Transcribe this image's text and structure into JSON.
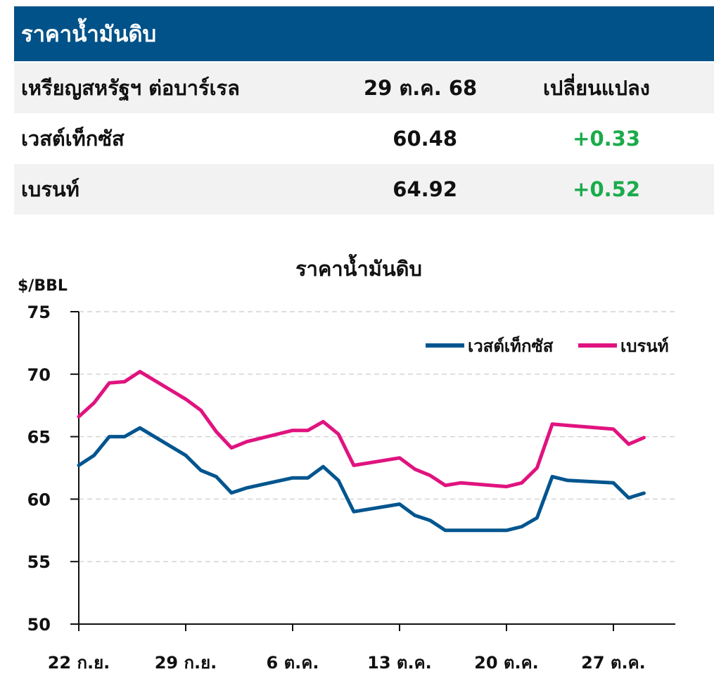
{
  "header": {
    "title": "ราคาน้ำมันดิบ"
  },
  "table": {
    "columns": [
      "เหรียญสหรัฐฯ ต่อบาร์เรล",
      "29 ต.ค. 68",
      "เปลี่ยนแปลง"
    ],
    "rows": [
      {
        "name": "เวสต์เท็กซัส",
        "price": "60.48",
        "change": "+0.33"
      },
      {
        "name": "เบรนท์",
        "price": "64.92",
        "change": "+0.52"
      }
    ]
  },
  "colors": {
    "header": "#005288",
    "wti": "#00558f",
    "brent": "#e0137f",
    "positive": "#1aab4b"
  },
  "chart_data": {
    "type": "line",
    "title": "ราคาน้ำมันดิบ",
    "ylabel": "$/BBL",
    "ylim": [
      50,
      75
    ],
    "yticks": [
      50,
      55,
      60,
      65,
      70,
      75
    ],
    "xticks": [
      {
        "date": "2025-09-22",
        "label": "22 ก.ย."
      },
      {
        "date": "2025-09-29",
        "label": "29 ก.ย."
      },
      {
        "date": "2025-10-06",
        "label": "6 ต.ค."
      },
      {
        "date": "2025-10-13",
        "label": "13 ต.ค."
      },
      {
        "date": "2025-10-20",
        "label": "20 ต.ค."
      },
      {
        "date": "2025-10-27",
        "label": "27 ต.ค."
      }
    ],
    "grid": "horizontal dashed",
    "legend": "top-right",
    "x": [
      "2025-09-22",
      "2025-09-23",
      "2025-09-24",
      "2025-09-25",
      "2025-09-26",
      "2025-09-29",
      "2025-09-30",
      "2025-10-01",
      "2025-10-02",
      "2025-10-03",
      "2025-10-06",
      "2025-10-07",
      "2025-10-08",
      "2025-10-09",
      "2025-10-10",
      "2025-10-13",
      "2025-10-14",
      "2025-10-15",
      "2025-10-16",
      "2025-10-17",
      "2025-10-20",
      "2025-10-21",
      "2025-10-22",
      "2025-10-23",
      "2025-10-24",
      "2025-10-27",
      "2025-10-28",
      "2025-10-29"
    ],
    "series": [
      {
        "name": "เวสต์เท็กซัส",
        "values": [
          62.7,
          63.5,
          65.0,
          65.0,
          65.7,
          63.5,
          62.3,
          61.8,
          60.5,
          60.9,
          61.7,
          61.7,
          62.6,
          61.5,
          59.0,
          59.6,
          58.7,
          58.3,
          57.5,
          57.5,
          57.5,
          57.8,
          58.5,
          61.8,
          61.5,
          61.3,
          60.1,
          60.48
        ]
      },
      {
        "name": "เบรนท์",
        "values": [
          66.6,
          67.7,
          69.3,
          69.4,
          70.2,
          68.0,
          67.1,
          65.4,
          64.1,
          64.6,
          65.5,
          65.5,
          66.2,
          65.2,
          62.7,
          63.3,
          62.4,
          61.9,
          61.1,
          61.3,
          61.0,
          61.3,
          62.5,
          66.0,
          65.9,
          65.6,
          64.4,
          64.92
        ]
      }
    ]
  }
}
